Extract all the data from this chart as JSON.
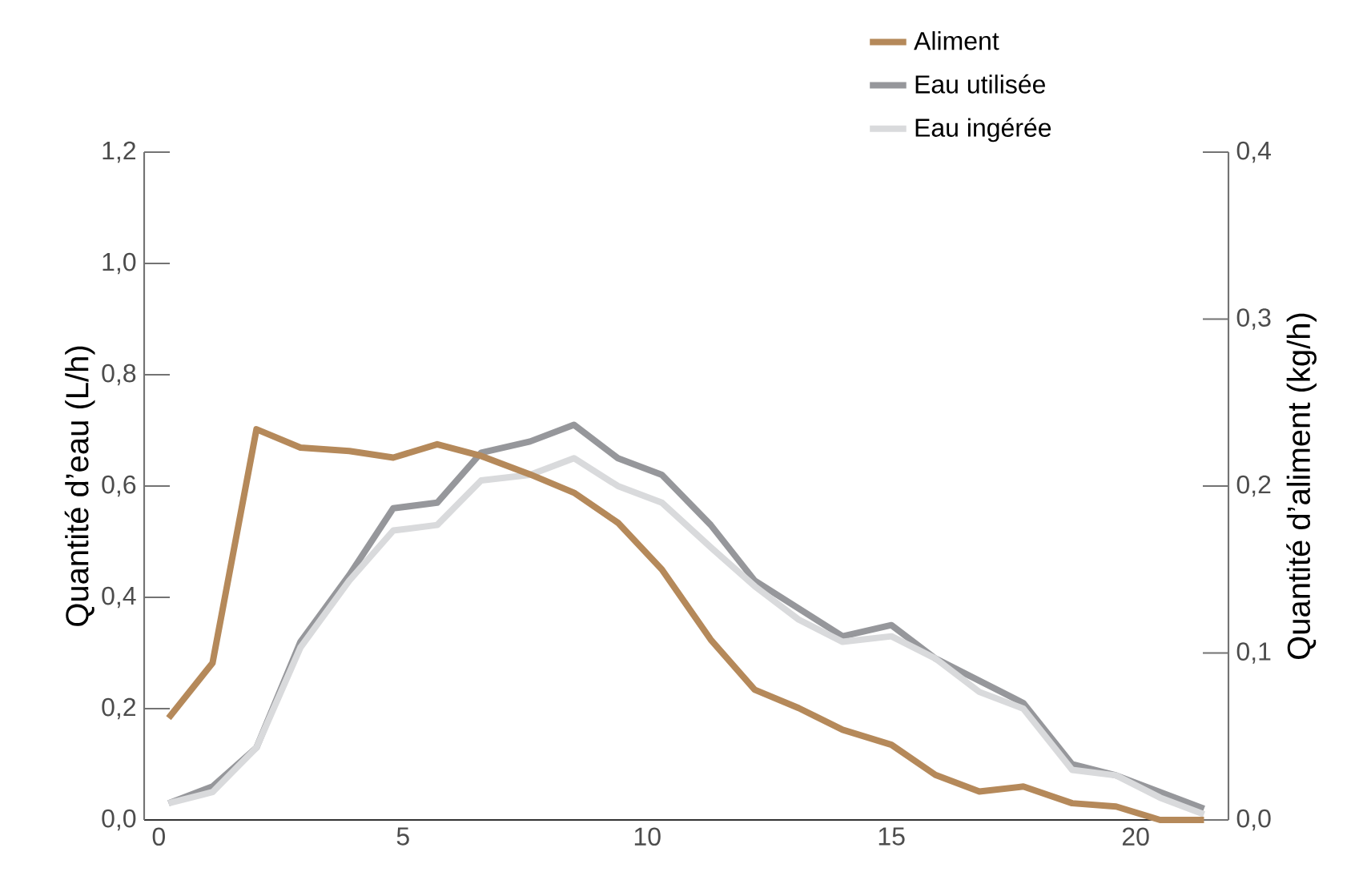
{
  "chart_data": {
    "type": "line",
    "ylabel": "Quantité d’eau (L/h)",
    "y2label": "Quantité d’aliment (kg/h)",
    "xlim": [
      -0.3,
      21.9
    ],
    "xticks": [
      0,
      5,
      10,
      15,
      20
    ],
    "ylim": [
      0,
      1.2
    ],
    "yticks": [
      {
        "value": 0,
        "label": "0,0"
      },
      {
        "value": 0.2,
        "label": "0,2"
      },
      {
        "value": 0.4,
        "label": "0,4"
      },
      {
        "value": 0.6,
        "label": "0,6"
      },
      {
        "value": 0.8,
        "label": "0,8"
      },
      {
        "value": 1.0,
        "label": "1,0"
      },
      {
        "value": 1.2,
        "label": "1,2"
      }
    ],
    "y2lim": [
      0,
      0.4
    ],
    "y2ticks": [
      {
        "value": 0,
        "label": "0,0"
      },
      {
        "value": 0.1,
        "label": "0,1"
      },
      {
        "value": 0.2,
        "label": "0,2"
      },
      {
        "value": 0.3,
        "label": "0,3"
      },
      {
        "value": 0.4,
        "label": "0,4"
      }
    ],
    "x": [
      0.2,
      1.1,
      2.0,
      2.9,
      3.9,
      4.8,
      5.7,
      6.6,
      7.6,
      8.5,
      9.4,
      10.3,
      11.3,
      12.2,
      13.1,
      14.0,
      15.0,
      15.9,
      16.8,
      17.7,
      18.7,
      19.6,
      20.5,
      21.4
    ],
    "series": [
      {
        "name": "Aliment",
        "color": "#b5895a",
        "axis": "y2",
        "values": [
          0.061,
          0.094,
          0.234,
          0.223,
          0.221,
          0.217,
          0.225,
          0.218,
          0.207,
          0.196,
          0.178,
          0.15,
          0.108,
          0.078,
          0.067,
          0.054,
          0.045,
          0.027,
          0.017,
          0.02,
          0.01,
          0.008,
          0.0,
          0.0
        ]
      },
      {
        "name": "Eau utilisée",
        "color": "#96979b",
        "values": [
          0.03,
          0.06,
          0.13,
          0.32,
          0.44,
          0.56,
          0.57,
          0.66,
          0.68,
          0.71,
          0.65,
          0.62,
          0.53,
          0.43,
          0.38,
          0.33,
          0.35,
          0.29,
          0.25,
          0.21,
          0.1,
          0.08,
          0.05,
          0.02
        ]
      },
      {
        "name": "Eau ingérée",
        "color": "#d9dadc",
        "values": [
          0.03,
          0.05,
          0.13,
          0.31,
          0.43,
          0.52,
          0.53,
          0.61,
          0.62,
          0.65,
          0.6,
          0.57,
          0.49,
          0.42,
          0.36,
          0.32,
          0.33,
          0.29,
          0.23,
          0.2,
          0.09,
          0.08,
          0.04,
          0.01
        ]
      }
    ],
    "grid": false,
    "legend": "top",
    "marker": "none",
    "line_style": "solid"
  }
}
